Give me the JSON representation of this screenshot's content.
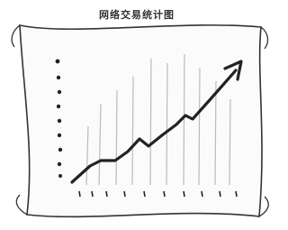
{
  "header": {
    "title": "网络交易统计图"
  }
}
